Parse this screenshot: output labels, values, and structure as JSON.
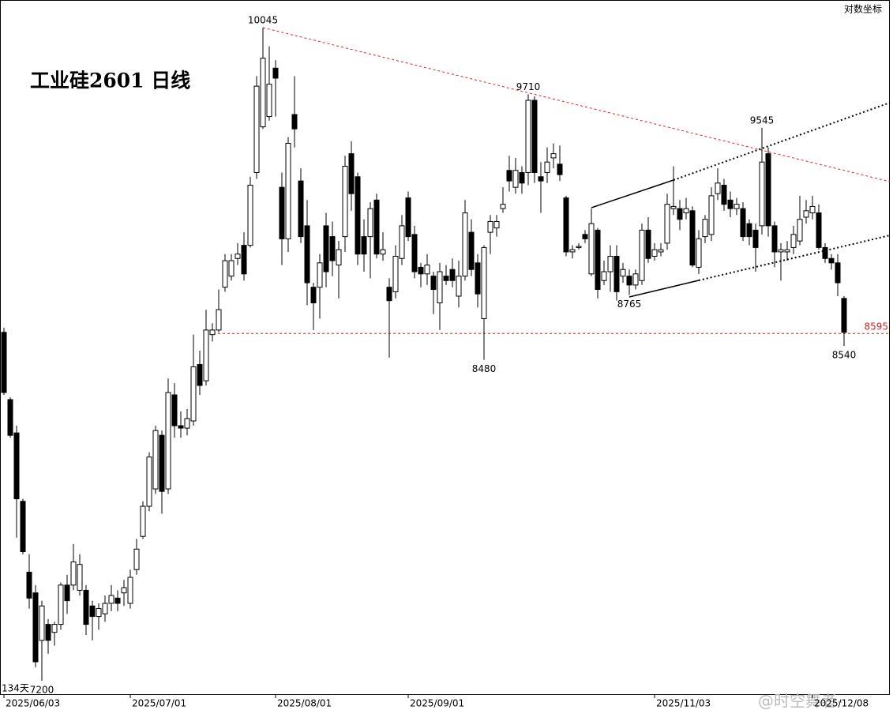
{
  "chart_data": {
    "type": "candlestick",
    "title": "工业硅2601 日线",
    "note": "对数坐标",
    "count_label": "134天",
    "watermark": "@时空舞者-",
    "log_scale": true,
    "ylim": [
      7148,
      10188
    ],
    "up_color": "#ffffff",
    "down_color": "#000000",
    "edge_color": "#000000",
    "reference_line": {
      "value": 8595,
      "color": "#e02020"
    },
    "categories": [
      "2025/06/03",
      null,
      null,
      null,
      null,
      null,
      null,
      null,
      null,
      null,
      null,
      null,
      null,
      null,
      null,
      null,
      null,
      null,
      null,
      null,
      "2025/07/01",
      null,
      null,
      null,
      null,
      null,
      null,
      null,
      null,
      null,
      null,
      null,
      null,
      null,
      null,
      null,
      null,
      null,
      null,
      null,
      null,
      null,
      null,
      "2025/08/01",
      null,
      null,
      null,
      null,
      null,
      null,
      null,
      null,
      null,
      null,
      null,
      null,
      null,
      null,
      null,
      null,
      null,
      null,
      null,
      null,
      "2025/09/01",
      null,
      null,
      null,
      null,
      null,
      null,
      null,
      null,
      null,
      null,
      null,
      null,
      null,
      null,
      null,
      null,
      null,
      null,
      null,
      null,
      null,
      null,
      null,
      null,
      null,
      null,
      null,
      null,
      null,
      null,
      null,
      null,
      null,
      null,
      null,
      null,
      null,
      null,
      "2025/11/03",
      null,
      null,
      null,
      null,
      null,
      null,
      null,
      null,
      null,
      null,
      null,
      null,
      null,
      null,
      null,
      null,
      null,
      null,
      null,
      null,
      null,
      null,
      null,
      null,
      "2025/12/08",
      null,
      null,
      null,
      null,
      null
    ],
    "open": [
      8600,
      8310,
      8170,
      7890,
      7610,
      7530,
      7350,
      7410,
      7380,
      7410,
      7560,
      7560,
      7540,
      7540,
      7480,
      7440,
      7450,
      7490,
      7510,
      7530,
      7490,
      7620,
      7750,
      7870,
      7940,
      8160,
      7940,
      8330,
      8200,
      8190,
      8220,
      8460,
      8390,
      8590,
      8610,
      8800,
      8850,
      8930,
      8990,
      8990,
      9330,
      9550,
      9600,
      9840,
      9260,
      9020,
      9610,
      9290,
      9080,
      8800,
      8800,
      9080,
      9030,
      8900,
      9030,
      9420,
      9310,
      9030,
      9030,
      9200,
      8950,
      8800,
      8780,
      8930,
      9210,
      9040,
      8890,
      8860,
      8850,
      8730,
      8850,
      8880,
      8760,
      8850,
      9050,
      8910,
      8660,
      9050,
      9070,
      9160,
      9340,
      9260,
      9330,
      9330,
      9680,
      9310,
      9330,
      9400,
      9370,
      9210,
      8960,
      8980,
      9040,
      8860,
      9060,
      8830,
      8870,
      8940,
      8850,
      8850,
      8810,
      8830,
      9060,
      8940,
      8960,
      9000,
      9160,
      9160,
      9140,
      9150,
      8890,
      9030,
      9040,
      9230,
      9270,
      9200,
      9160,
      9160,
      9090,
      9060,
      9080,
      9420,
      9080,
      8960,
      8960,
      8980,
      9010,
      9120,
      9140,
      9140,
      8980,
      8930,
      8910,
      8750
    ],
    "high": [
      8620,
      8320,
      8200,
      7900,
      7680,
      7560,
      7500,
      7430,
      7420,
      7570,
      7600,
      7720,
      7680,
      7560,
      7500,
      7490,
      7520,
      7560,
      7540,
      7580,
      7620,
      7740,
      7890,
      8090,
      8200,
      8180,
      8400,
      8380,
      8260,
      8270,
      8590,
      8520,
      8700,
      8640,
      8790,
      8950,
      8950,
      9000,
      9050,
      9310,
      9800,
      10045,
      9950,
      9880,
      9330,
      9500,
      9800,
      9350,
      9200,
      8820,
      8950,
      9140,
      9100,
      9010,
      9410,
      9480,
      9330,
      9110,
      9190,
      9230,
      9050,
      8840,
      8990,
      9130,
      9240,
      9080,
      8910,
      8950,
      8870,
      8910,
      8900,
      8930,
      8920,
      9200,
      9110,
      8950,
      8990,
      9130,
      9130,
      9260,
      9410,
      9400,
      9360,
      9710,
      9700,
      9380,
      9450,
      9470,
      9460,
      9220,
      8990,
      9000,
      9060,
      9160,
      9070,
      8920,
      8990,
      8990,
      8910,
      8880,
      8880,
      9090,
      9120,
      9000,
      9000,
      9230,
      9360,
      9200,
      9210,
      9170,
      9060,
      9130,
      9260,
      9350,
      9300,
      9240,
      9210,
      9190,
      9110,
      9090,
      9545,
      9450,
      9100,
      9000,
      9010,
      9080,
      9220,
      9200,
      9220,
      9180,
      9000,
      8950,
      8950,
      8760
    ],
    "low": [
      8330,
      8150,
      7745,
      7680,
      7470,
      7250,
      7200,
      7300,
      7330,
      7390,
      7450,
      7540,
      7520,
      7370,
      7350,
      7390,
      7420,
      7460,
      7460,
      7480,
      7470,
      7600,
      7740,
      7850,
      7920,
      7840,
      7920,
      8150,
      8150,
      8160,
      8200,
      8330,
      8370,
      8560,
      8600,
      8780,
      8830,
      8900,
      8830,
      8980,
      9300,
      9540,
      9580,
      9600,
      8900,
      8960,
      9450,
      9000,
      8720,
      8610,
      8660,
      8800,
      8850,
      8750,
      8960,
      9150,
      8900,
      8870,
      8840,
      8930,
      8920,
      8490,
      8750,
      8900,
      9010,
      8840,
      8800,
      8810,
      8680,
      8610,
      8810,
      8800,
      8710,
      8830,
      8850,
      8710,
      8480,
      8950,
      9030,
      9140,
      9240,
      9230,
      9230,
      9270,
      9280,
      9140,
      9280,
      9350,
      9290,
      8940,
      8930,
      8970,
      9000,
      8850,
      8750,
      8810,
      8780,
      8740,
      8820,
      8765,
      8790,
      8810,
      8910,
      8920,
      8940,
      8970,
      9130,
      9060,
      9110,
      8890,
      8860,
      9000,
      9010,
      9200,
      9150,
      9120,
      9130,
      9010,
      8990,
      8870,
      9040,
      9030,
      8890,
      8830,
      8920,
      8950,
      8990,
      9090,
      9110,
      8970,
      8910,
      8880,
      8760,
      8540
    ],
    "close": [
      8340,
      8160,
      7900,
      7690,
      7510,
      7270,
      7480,
      7350,
      7410,
      7560,
      7500,
      7650,
      7640,
      7410,
      7440,
      7470,
      7490,
      7520,
      7490,
      7550,
      7590,
      7700,
      7870,
      8070,
      8180,
      7930,
      8340,
      8200,
      8190,
      8230,
      8450,
      8370,
      8610,
      8610,
      8700,
      8920,
      8920,
      8950,
      8860,
      9270,
      9750,
      9890,
      9760,
      9790,
      9020,
      9470,
      9540,
      9030,
      8820,
      8730,
      8910,
      8870,
      8920,
      8970,
      9360,
      9230,
      8950,
      8950,
      9160,
      8950,
      8970,
      8740,
      8940,
      9080,
      9030,
      8870,
      8860,
      8900,
      8790,
      8870,
      8830,
      8830,
      8850,
      9140,
      8880,
      8770,
      8980,
      9100,
      9100,
      9180,
      9290,
      9340,
      9280,
      9680,
      9330,
      9290,
      9380,
      9420,
      9320,
      8960,
      8970,
      8985,
      9020,
      9090,
      8790,
      8870,
      8940,
      8780,
      8880,
      8810,
      8860,
      9060,
      8930,
      8970,
      8970,
      9180,
      9170,
      9110,
      9160,
      8900,
      9020,
      9110,
      9220,
      9280,
      9180,
      9160,
      9180,
      9030,
      9030,
      8980,
      9380,
      9080,
      8960,
      8970,
      8970,
      9040,
      9110,
      9150,
      9170,
      8980,
      8930,
      8910,
      8820,
      8600
    ]
  }
}
